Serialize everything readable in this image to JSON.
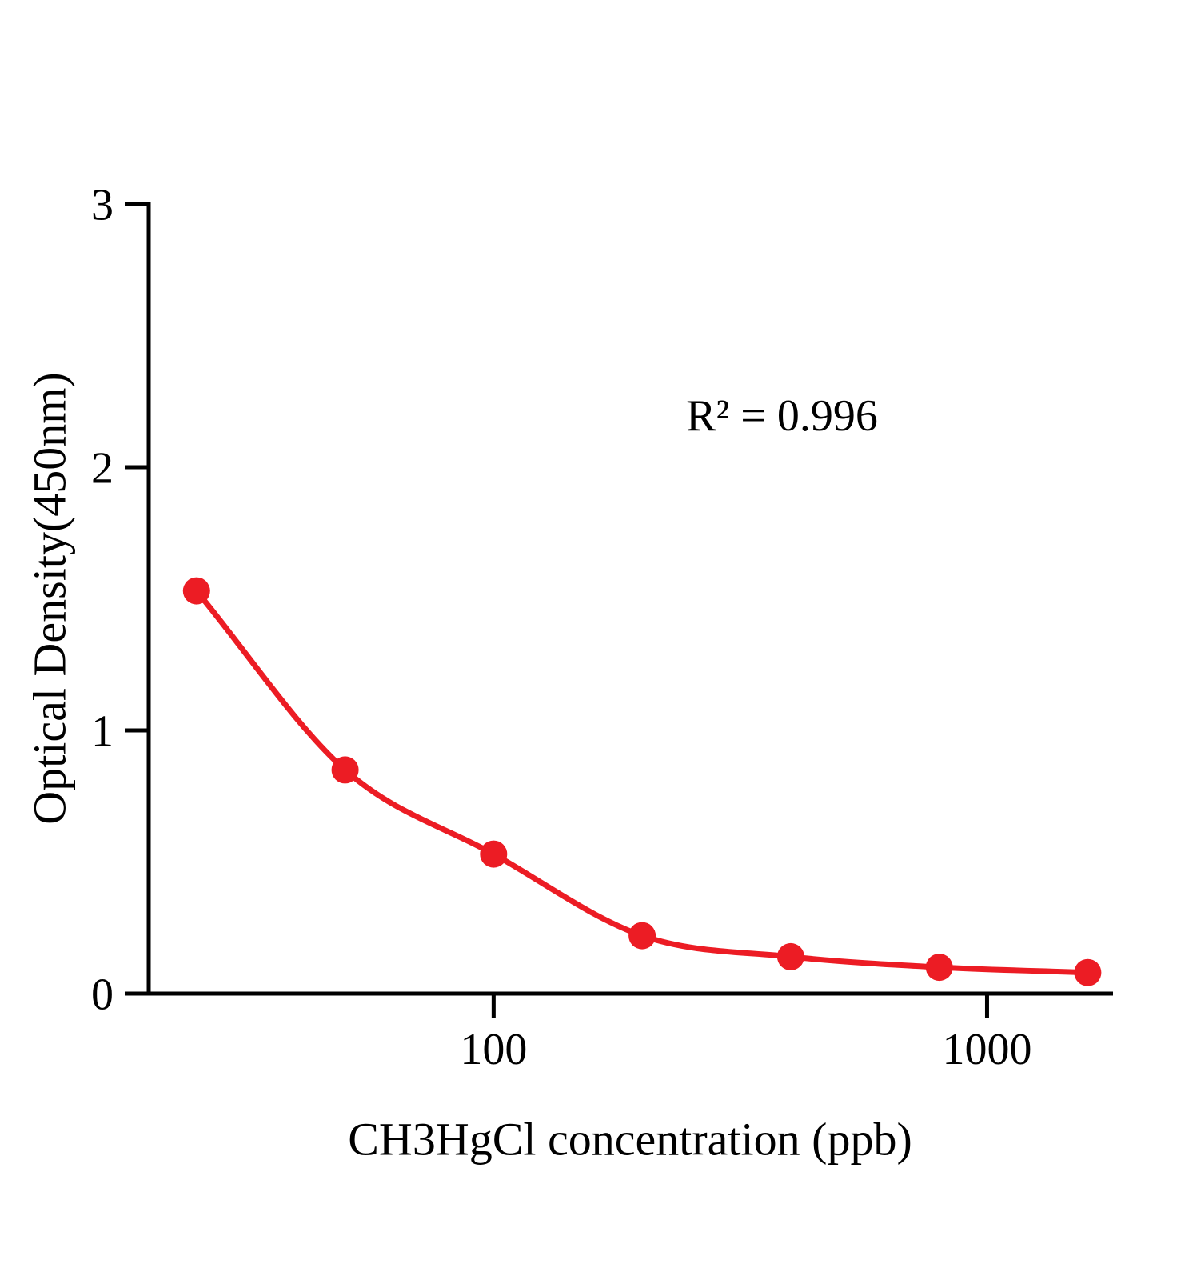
{
  "chart_data": {
    "type": "scatter",
    "title": "",
    "xlabel": "CH3HgCl concentration (ppb)",
    "ylabel": "Optical Density(450nm)",
    "annotation": "R² = 0.996",
    "x_scale": "log",
    "y_scale": "linear",
    "grid": false,
    "legend": false,
    "xlim": [
      20,
      1800
    ],
    "ylim": [
      0,
      3
    ],
    "x": [
      25,
      50,
      100,
      200,
      400,
      800,
      1600
    ],
    "y": [
      1.53,
      0.85,
      0.53,
      0.22,
      0.14,
      0.1,
      0.08
    ],
    "x_ticks": [
      {
        "value": 100,
        "label": "100"
      },
      {
        "value": 1000,
        "label": "1000"
      }
    ],
    "y_ticks": [
      {
        "value": 0,
        "label": "0"
      },
      {
        "value": 1,
        "label": "1"
      },
      {
        "value": 2,
        "label": "2"
      },
      {
        "value": 3,
        "label": "3"
      }
    ],
    "marker_color": "#ec1c24",
    "curve_color": "#ec1c24",
    "axis_color": "#000000"
  }
}
